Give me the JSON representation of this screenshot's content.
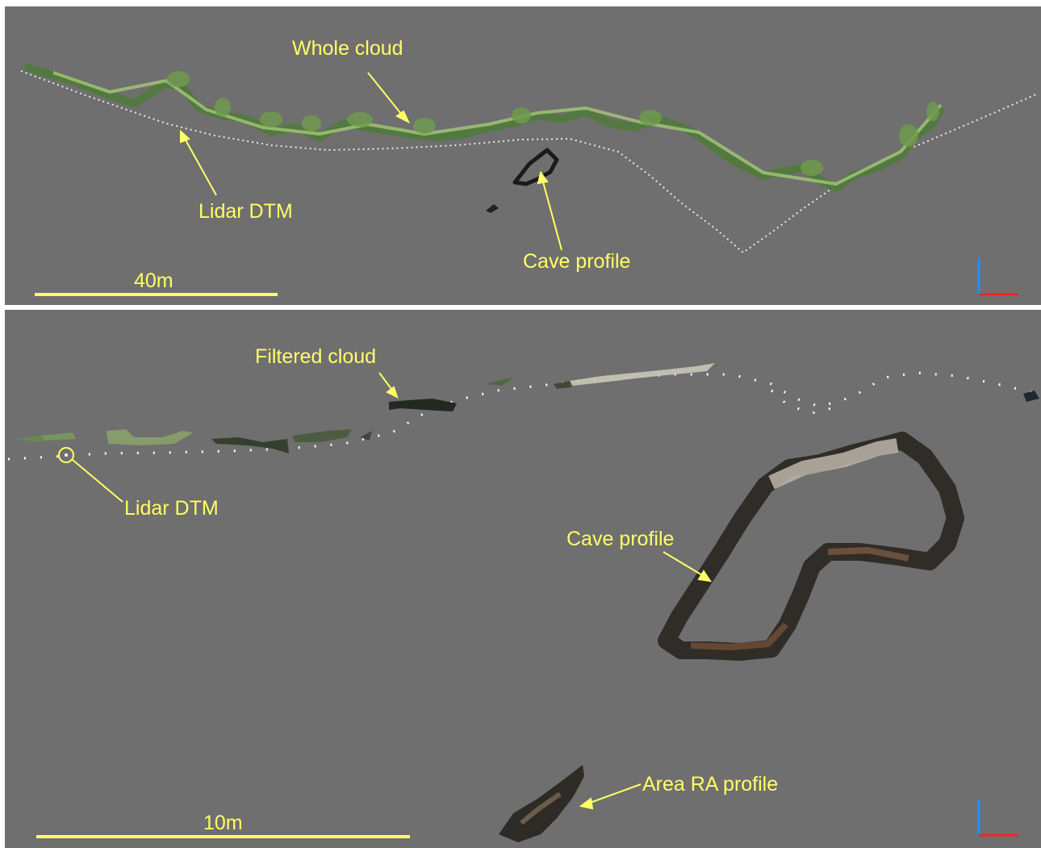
{
  "top_panel": {
    "labels": {
      "whole_cloud": "Whole cloud",
      "lidar_dtm": "Lidar DTM",
      "cave_profile": "Cave profile",
      "scale": "40m"
    }
  },
  "bottom_panel": {
    "labels": {
      "filtered_cloud": "Filtered cloud",
      "lidar_dtm": "Lidar DTM",
      "cave_profile": "Cave profile",
      "area_ra_profile": "Area RA profile",
      "scale": "10m"
    }
  },
  "colors": {
    "background": "#6f6f6f",
    "annotation": "#ffff66",
    "axis_vertical": "#1e90ff",
    "axis_horizontal": "#ff2020",
    "dtm_points": "#ffffff"
  }
}
